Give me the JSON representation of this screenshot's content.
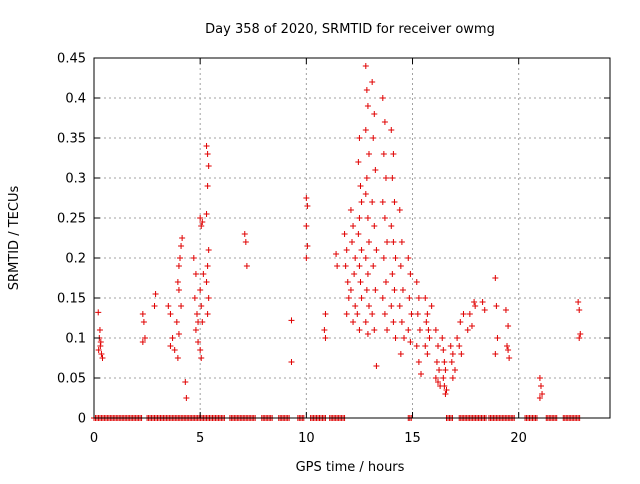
{
  "chart_data": {
    "type": "scatter",
    "title": "Day 358 of 2020, SRMTID for receiver owmg",
    "xlabel": "GPS time / hours",
    "ylabel": "SRMTID / TECUs",
    "xlim": [
      0,
      24.3
    ],
    "ylim": [
      0,
      0.45
    ],
    "xticks": [
      0,
      5,
      10,
      15,
      20
    ],
    "xtick_labels": [
      "0",
      "5",
      "10",
      "15",
      "20"
    ],
    "yticks": [
      0,
      0.05,
      0.1,
      0.15,
      0.2,
      0.25,
      0.3,
      0.35,
      0.4,
      0.45
    ],
    "ytick_labels": [
      "0",
      "0.05",
      "0.1",
      "0.15",
      "0.2",
      "0.25",
      "0.3",
      "0.35",
      "0.4",
      "0.45"
    ],
    "grid": true,
    "marker": "+",
    "color": "#e00000",
    "zero_segments": [
      [
        0.0,
        2.3
      ],
      [
        2.5,
        6.2
      ],
      [
        6.4,
        7.6
      ],
      [
        7.9,
        8.4
      ],
      [
        8.7,
        9.2
      ],
      [
        9.6,
        9.9
      ],
      [
        10.2,
        10.9
      ],
      [
        11.1,
        11.8
      ],
      [
        14.8,
        15.0
      ],
      [
        16.6,
        16.9
      ],
      [
        17.2,
        18.5
      ],
      [
        18.6,
        19.8
      ],
      [
        20.3,
        20.9
      ],
      [
        21.3,
        21.8
      ],
      [
        22.1,
        22.9
      ]
    ],
    "series": [
      {
        "name": "SRMTID",
        "points": [
          [
            0.2,
            0.132
          ],
          [
            0.25,
            0.1
          ],
          [
            0.3,
            0.09
          ],
          [
            0.35,
            0.08
          ],
          [
            0.28,
            0.11
          ],
          [
            0.32,
            0.095
          ],
          [
            0.22,
            0.085
          ],
          [
            0.4,
            0.075
          ],
          [
            2.3,
            0.13
          ],
          [
            2.35,
            0.12
          ],
          [
            2.4,
            0.1
          ],
          [
            2.3,
            0.095
          ],
          [
            2.9,
            0.155
          ],
          [
            2.85,
            0.14
          ],
          [
            3.5,
            0.14
          ],
          [
            3.6,
            0.13
          ],
          [
            3.7,
            0.1
          ],
          [
            3.6,
            0.09
          ],
          [
            3.8,
            0.085
          ],
          [
            3.9,
            0.12
          ],
          [
            4.0,
            0.19
          ],
          [
            4.05,
            0.2
          ],
          [
            4.1,
            0.215
          ],
          [
            4.15,
            0.225
          ],
          [
            3.95,
            0.17
          ],
          [
            4.0,
            0.16
          ],
          [
            4.1,
            0.14
          ],
          [
            4.0,
            0.105
          ],
          [
            3.95,
            0.075
          ],
          [
            4.3,
            0.045
          ],
          [
            4.35,
            0.025
          ],
          [
            4.7,
            0.2
          ],
          [
            4.8,
            0.18
          ],
          [
            4.75,
            0.15
          ],
          [
            4.85,
            0.13
          ],
          [
            4.9,
            0.12
          ],
          [
            4.8,
            0.11
          ],
          [
            4.9,
            0.095
          ],
          [
            5.0,
            0.25
          ],
          [
            5.05,
            0.24
          ],
          [
            5.1,
            0.245
          ],
          [
            5.15,
            0.18
          ],
          [
            5.0,
            0.16
          ],
          [
            5.05,
            0.14
          ],
          [
            5.1,
            0.12
          ],
          [
            5.0,
            0.085
          ],
          [
            5.05,
            0.075
          ],
          [
            5.3,
            0.34
          ],
          [
            5.35,
            0.33
          ],
          [
            5.4,
            0.315
          ],
          [
            5.35,
            0.29
          ],
          [
            5.3,
            0.255
          ],
          [
            5.4,
            0.21
          ],
          [
            5.35,
            0.19
          ],
          [
            5.3,
            0.17
          ],
          [
            5.4,
            0.15
          ],
          [
            5.35,
            0.13
          ],
          [
            7.1,
            0.23
          ],
          [
            7.15,
            0.22
          ],
          [
            7.2,
            0.19
          ],
          [
            9.3,
            0.122
          ],
          [
            9.3,
            0.07
          ],
          [
            10.0,
            0.275
          ],
          [
            10.05,
            0.265
          ],
          [
            10.0,
            0.24
          ],
          [
            10.05,
            0.215
          ],
          [
            10.0,
            0.2
          ],
          [
            10.9,
            0.13
          ],
          [
            10.85,
            0.11
          ],
          [
            10.9,
            0.1
          ],
          [
            11.4,
            0.205
          ],
          [
            11.45,
            0.19
          ],
          [
            11.8,
            0.23
          ],
          [
            11.9,
            0.21
          ],
          [
            11.85,
            0.19
          ],
          [
            11.95,
            0.17
          ],
          [
            12.0,
            0.15
          ],
          [
            11.9,
            0.13
          ],
          [
            12.1,
            0.26
          ],
          [
            12.2,
            0.24
          ],
          [
            12.15,
            0.22
          ],
          [
            12.3,
            0.2
          ],
          [
            12.25,
            0.18
          ],
          [
            12.1,
            0.16
          ],
          [
            12.3,
            0.14
          ],
          [
            12.2,
            0.12
          ],
          [
            12.5,
            0.35
          ],
          [
            12.45,
            0.32
          ],
          [
            12.55,
            0.29
          ],
          [
            12.6,
            0.27
          ],
          [
            12.5,
            0.25
          ],
          [
            12.45,
            0.23
          ],
          [
            12.6,
            0.21
          ],
          [
            12.5,
            0.19
          ],
          [
            12.55,
            0.17
          ],
          [
            12.6,
            0.15
          ],
          [
            12.4,
            0.13
          ],
          [
            12.5,
            0.11
          ],
          [
            12.8,
            0.44
          ],
          [
            12.85,
            0.41
          ],
          [
            12.9,
            0.39
          ],
          [
            12.8,
            0.36
          ],
          [
            12.95,
            0.33
          ],
          [
            12.85,
            0.3
          ],
          [
            12.8,
            0.28
          ],
          [
            12.9,
            0.25
          ],
          [
            12.95,
            0.22
          ],
          [
            12.8,
            0.2
          ],
          [
            12.9,
            0.18
          ],
          [
            12.85,
            0.16
          ],
          [
            12.95,
            0.14
          ],
          [
            12.8,
            0.12
          ],
          [
            12.9,
            0.105
          ],
          [
            13.1,
            0.42
          ],
          [
            13.2,
            0.38
          ],
          [
            13.15,
            0.35
          ],
          [
            13.25,
            0.31
          ],
          [
            13.1,
            0.27
          ],
          [
            13.2,
            0.24
          ],
          [
            13.3,
            0.21
          ],
          [
            13.15,
            0.19
          ],
          [
            13.25,
            0.16
          ],
          [
            13.1,
            0.13
          ],
          [
            13.2,
            0.11
          ],
          [
            13.3,
            0.065
          ],
          [
            13.6,
            0.4
          ],
          [
            13.7,
            0.37
          ],
          [
            13.65,
            0.33
          ],
          [
            13.75,
            0.3
          ],
          [
            13.6,
            0.27
          ],
          [
            13.7,
            0.25
          ],
          [
            13.8,
            0.22
          ],
          [
            13.65,
            0.2
          ],
          [
            13.75,
            0.17
          ],
          [
            13.6,
            0.15
          ],
          [
            13.7,
            0.13
          ],
          [
            13.8,
            0.11
          ],
          [
            14.0,
            0.36
          ],
          [
            14.1,
            0.33
          ],
          [
            14.05,
            0.3
          ],
          [
            14.15,
            0.27
          ],
          [
            14.0,
            0.24
          ],
          [
            14.1,
            0.22
          ],
          [
            14.2,
            0.2
          ],
          [
            14.05,
            0.18
          ],
          [
            14.15,
            0.16
          ],
          [
            14.0,
            0.14
          ],
          [
            14.1,
            0.12
          ],
          [
            14.2,
            0.1
          ],
          [
            14.4,
            0.26
          ],
          [
            14.5,
            0.22
          ],
          [
            14.45,
            0.19
          ],
          [
            14.55,
            0.16
          ],
          [
            14.4,
            0.14
          ],
          [
            14.5,
            0.12
          ],
          [
            14.6,
            0.1
          ],
          [
            14.45,
            0.08
          ],
          [
            14.8,
            0.2
          ],
          [
            14.9,
            0.18
          ],
          [
            14.85,
            0.15
          ],
          [
            14.95,
            0.13
          ],
          [
            14.8,
            0.11
          ],
          [
            14.9,
            0.095
          ],
          [
            15.2,
            0.17
          ],
          [
            15.3,
            0.15
          ],
          [
            15.25,
            0.13
          ],
          [
            15.35,
            0.11
          ],
          [
            15.2,
            0.09
          ],
          [
            15.3,
            0.07
          ],
          [
            15.4,
            0.055
          ],
          [
            15.6,
            0.15
          ],
          [
            15.7,
            0.13
          ],
          [
            15.65,
            0.12
          ],
          [
            15.75,
            0.11
          ],
          [
            15.6,
            0.09
          ],
          [
            15.7,
            0.08
          ],
          [
            15.8,
            0.1
          ],
          [
            15.9,
            0.14
          ],
          [
            16.1,
            0.11
          ],
          [
            16.2,
            0.09
          ],
          [
            16.15,
            0.07
          ],
          [
            16.25,
            0.06
          ],
          [
            16.1,
            0.05
          ],
          [
            16.2,
            0.045
          ],
          [
            16.3,
            0.04
          ],
          [
            16.4,
            0.1
          ],
          [
            16.45,
            0.085
          ],
          [
            16.5,
            0.07
          ],
          [
            16.55,
            0.06
          ],
          [
            16.45,
            0.05
          ],
          [
            16.5,
            0.04
          ],
          [
            16.6,
            0.035
          ],
          [
            16.55,
            0.03
          ],
          [
            16.8,
            0.09
          ],
          [
            16.9,
            0.08
          ],
          [
            16.85,
            0.07
          ],
          [
            17.0,
            0.06
          ],
          [
            16.9,
            0.05
          ],
          [
            17.1,
            0.1
          ],
          [
            17.2,
            0.09
          ],
          [
            17.3,
            0.08
          ],
          [
            17.25,
            0.12
          ],
          [
            17.4,
            0.13
          ],
          [
            17.6,
            0.11
          ],
          [
            17.7,
            0.13
          ],
          [
            17.8,
            0.115
          ],
          [
            17.9,
            0.145
          ],
          [
            17.95,
            0.14
          ],
          [
            18.3,
            0.145
          ],
          [
            18.4,
            0.135
          ],
          [
            18.9,
            0.175
          ],
          [
            18.95,
            0.14
          ],
          [
            19.0,
            0.1
          ],
          [
            18.9,
            0.08
          ],
          [
            19.4,
            0.135
          ],
          [
            19.5,
            0.115
          ],
          [
            19.45,
            0.09
          ],
          [
            19.5,
            0.085
          ],
          [
            19.55,
            0.075
          ],
          [
            21.0,
            0.05
          ],
          [
            21.05,
            0.04
          ],
          [
            21.1,
            0.03
          ],
          [
            21.0,
            0.025
          ],
          [
            22.8,
            0.145
          ],
          [
            22.85,
            0.135
          ],
          [
            22.9,
            0.105
          ],
          [
            22.85,
            0.1
          ]
        ]
      }
    ]
  }
}
